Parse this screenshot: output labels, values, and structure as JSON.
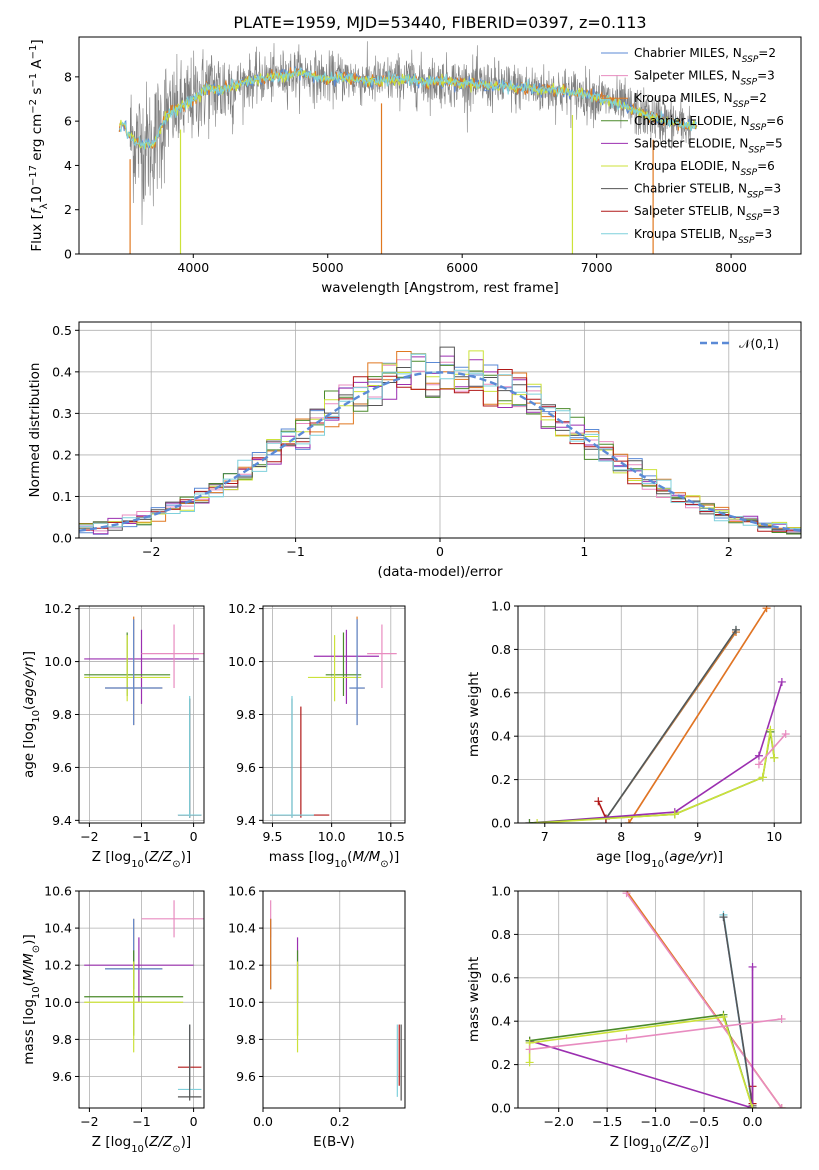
{
  "title": "PLATE=1959, MJD=53440, FIBERID=0397, z=0.113",
  "colors": {
    "Chabrier MILES": "#5b8ad6",
    "Salpeter MILES": "#e88cc0",
    "Kroupa MILES": "#e07820",
    "Chabrier ELODIE": "#4a8a2a",
    "Salpeter ELODIE": "#9b2fb0",
    "Kroupa ELODIE": "#cce23a",
    "Chabrier STELIB": "#555555",
    "Salpeter STELIB": "#b01818",
    "Kroupa STELIB": "#7fd0dc",
    "gaussian": "#5b8ad6"
  },
  "chart_data": [
    {
      "id": "spectrum",
      "type": "line",
      "xlabel": "wavelength [Angstrom, rest frame]",
      "ylabel": "Flux [f_λ 10^-17 erg cm^-2 s^-1 A^-1]",
      "xlim": [
        3150,
        8520
      ],
      "ylim": [
        0,
        9.8
      ],
      "xticks": [
        4000,
        5000,
        6000,
        7000,
        8000
      ],
      "yticks": [
        0,
        2,
        4,
        6,
        8
      ],
      "legend_position": "upper-right",
      "legend": [
        {
          "model": "Chabrier MILES",
          "n": "2"
        },
        {
          "model": "Salpeter MILES",
          "n": "3"
        },
        {
          "model": "Kroupa MILES",
          "n": "2"
        },
        {
          "model": "Chabrier ELODIE",
          "n": "6"
        },
        {
          "model": "Salpeter ELODIE",
          "n": "5"
        },
        {
          "model": "Kroupa ELODIE",
          "n": "6"
        },
        {
          "model": "Chabrier STELIB",
          "n": "3"
        },
        {
          "model": "Salpeter STELIB",
          "n": "3"
        },
        {
          "model": "Kroupa STELIB",
          "n": "3"
        }
      ],
      "model_continuum": [
        [
          3500,
          5.4
        ],
        [
          3600,
          5.0
        ],
        [
          3700,
          4.9
        ],
        [
          3800,
          6.3
        ],
        [
          3900,
          6.6
        ],
        [
          4000,
          7.0
        ],
        [
          4100,
          7.5
        ],
        [
          4200,
          7.4
        ],
        [
          4300,
          7.6
        ],
        [
          4400,
          7.8
        ],
        [
          4500,
          7.9
        ],
        [
          4600,
          8.0
        ],
        [
          4700,
          8.1
        ],
        [
          4800,
          8.2
        ],
        [
          4900,
          8.0
        ],
        [
          5000,
          7.9
        ],
        [
          5100,
          8.0
        ],
        [
          5200,
          7.9
        ],
        [
          5300,
          7.8
        ],
        [
          5400,
          7.8
        ],
        [
          5500,
          7.9
        ],
        [
          5600,
          7.9
        ],
        [
          5700,
          7.8
        ],
        [
          5800,
          7.8
        ],
        [
          5900,
          7.8
        ],
        [
          6000,
          7.7
        ],
        [
          6100,
          7.7
        ],
        [
          6200,
          7.6
        ],
        [
          6300,
          7.6
        ],
        [
          6400,
          7.5
        ],
        [
          6500,
          7.5
        ],
        [
          6600,
          7.4
        ],
        [
          6700,
          7.4
        ],
        [
          6800,
          7.3
        ],
        [
          6900,
          7.2
        ],
        [
          7000,
          7.1
        ],
        [
          7100,
          6.9
        ],
        [
          7200,
          6.7
        ],
        [
          7300,
          6.4
        ],
        [
          7400,
          6.2
        ],
        [
          7500,
          6.0
        ],
        [
          7600,
          5.9
        ],
        [
          7650,
          5.8
        ]
      ],
      "dropouts": [
        {
          "model": "Kroupa MILES",
          "x": 3530
        },
        {
          "model": "Kroupa ELODIE",
          "x": 3905
        },
        {
          "model": "Kroupa MILES",
          "x": 5400
        },
        {
          "model": "Kroupa ELODIE",
          "x": 6820
        },
        {
          "model": "Kroupa MILES",
          "x": 7420
        }
      ]
    },
    {
      "id": "residuals",
      "type": "histogram",
      "xlabel": "(data-model)/error",
      "ylabel": "Normed distribution",
      "xlim": [
        -2.5,
        2.5
      ],
      "ylim": [
        0,
        0.52
      ],
      "xticks": [
        -2,
        -1,
        0,
        1,
        2
      ],
      "yticks": [
        0.0,
        0.1,
        0.2,
        0.3,
        0.4,
        0.5
      ],
      "legend_position": "upper-right",
      "gaussian_label": "𝒩(0,1)",
      "bin_width": 0.1
    },
    {
      "id": "age-vs-Z",
      "type": "errorbar",
      "xlabel": "Z [log10(Z/Z☉)]",
      "ylabel": "age [log10(age/yr)]",
      "xlim": [
        -2.2,
        0.2
      ],
      "ylim": [
        9.39,
        10.21
      ],
      "xticks": [
        -2,
        -1,
        0
      ],
      "yticks": [
        9.4,
        9.6,
        9.8,
        10.0,
        10.2
      ],
      "points": [
        {
          "model": "Salpeter ELODIE",
          "x": [
            -2.1,
            0.1
          ],
          "y": [
            10.0,
            10.02
          ],
          "yerr": [
            9.84,
            10.12
          ]
        },
        {
          "model": "Salpeter MILES",
          "x": [
            -1.0,
            0.25
          ],
          "y": [
            10.03,
            10.03
          ],
          "yerr": [
            9.9,
            10.14
          ]
        },
        {
          "model": "Chabrier ELODIE",
          "x": [
            -2.1,
            -0.45
          ],
          "y": [
            9.95,
            9.95
          ],
          "yerr": [
            9.87,
            10.11
          ]
        },
        {
          "model": "Kroupa ELODIE",
          "x": [
            -2.1,
            -0.45
          ],
          "y": [
            9.94,
            9.94
          ],
          "yerr": [
            9.85,
            10.1
          ]
        },
        {
          "model": "Kroupa MILES",
          "x": [
            -1.7,
            -0.6
          ],
          "y": [
            9.9,
            9.9
          ],
          "yerr": [
            9.76,
            10.17
          ]
        },
        {
          "model": "Chabrier MILES",
          "x": [
            -1.7,
            -0.6
          ],
          "y": [
            9.9,
            9.9
          ],
          "yerr": [
            9.76,
            10.16
          ]
        },
        {
          "model": "Salpeter STELIB",
          "x": [
            -0.3,
            0.15
          ],
          "y": [
            9.42,
            9.42
          ],
          "yerr": [
            9.41,
            9.86
          ]
        },
        {
          "model": "Chabrier STELIB",
          "x": [
            -0.3,
            0.15
          ],
          "y": [
            9.42,
            9.42
          ],
          "yerr": [
            9.41,
            9.86
          ]
        },
        {
          "model": "Kroupa STELIB",
          "x": [
            -0.3,
            0.15
          ],
          "y": [
            9.42,
            9.42
          ],
          "yerr": [
            9.41,
            9.87
          ]
        }
      ]
    },
    {
      "id": "age-vs-mass",
      "type": "errorbar",
      "xlabel": "mass [log10(M/M☉)]",
      "ylabel": "",
      "xlim": [
        9.42,
        10.62
      ],
      "ylim": [
        9.39,
        10.21
      ],
      "xticks": [
        9.5,
        10.0,
        10.5
      ],
      "yticks": [
        9.4,
        9.6,
        9.8,
        10.0,
        10.2
      ],
      "points": [
        {
          "model": "Salpeter ELODIE",
          "x": [
            9.85,
            10.4
          ],
          "y": [
            10.02,
            10.02
          ],
          "yerr": [
            9.84,
            10.12
          ]
        },
        {
          "model": "Salpeter MILES",
          "x": [
            10.3,
            10.55
          ],
          "y": [
            10.03,
            10.03
          ],
          "yerr": [
            9.9,
            10.14
          ]
        },
        {
          "model": "Chabrier ELODIE",
          "x": [
            9.95,
            10.25
          ],
          "y": [
            9.95,
            9.95
          ],
          "yerr": [
            9.87,
            10.11
          ]
        },
        {
          "model": "Kroupa ELODIE",
          "x": [
            9.8,
            10.25
          ],
          "y": [
            9.94,
            9.94
          ],
          "yerr": [
            9.85,
            10.1
          ]
        },
        {
          "model": "Kroupa MILES",
          "x": [
            10.15,
            10.28
          ],
          "y": [
            9.9,
            9.9
          ],
          "yerr": [
            9.76,
            10.17
          ]
        },
        {
          "model": "Chabrier MILES",
          "x": [
            10.15,
            10.28
          ],
          "y": [
            9.9,
            9.9
          ],
          "yerr": [
            9.76,
            10.16
          ]
        },
        {
          "model": "Salpeter STELIB",
          "x": [
            9.5,
            9.98
          ],
          "y": [
            9.42,
            9.42
          ],
          "yerr": [
            9.41,
            9.83
          ]
        },
        {
          "model": "Chabrier STELIB",
          "x": [
            9.48,
            9.85
          ],
          "y": [
            9.42,
            9.42
          ],
          "yerr": [
            9.41,
            9.86
          ]
        },
        {
          "model": "Kroupa STELIB",
          "x": [
            9.48,
            9.85
          ],
          "y": [
            9.42,
            9.42
          ],
          "yerr": [
            9.41,
            9.87
          ]
        }
      ]
    },
    {
      "id": "weight-vs-age",
      "type": "line",
      "xlabel": "age [log10(age/yr)]",
      "ylabel": "mass weight",
      "xlim": [
        6.65,
        10.35
      ],
      "ylim": [
        0,
        1.0
      ],
      "xticks": [
        7,
        8,
        9,
        10
      ],
      "yticks": [
        0.0,
        0.2,
        0.4,
        0.6,
        0.8,
        1.0
      ],
      "series": [
        {
          "model": "Chabrier MILES",
          "x": [
            7.8,
            9.5
          ],
          "y": [
            0.02,
            0.88
          ]
        },
        {
          "model": "Kroupa MILES",
          "x": [
            7.8,
            9.5
          ],
          "y": [
            0.02,
            0.88
          ]
        },
        {
          "model": "Kroupa STELIB",
          "x": [
            7.8,
            9.5
          ],
          "y": [
            0.02,
            0.89
          ]
        },
        {
          "model": "Chabrier STELIB",
          "x": [
            7.8,
            9.5
          ],
          "y": [
            0.02,
            0.89
          ]
        },
        {
          "model": "Salpeter MILES",
          "x": [
            8.1,
            9.9
          ],
          "y": [
            0.0,
            0.99
          ]
        },
        {
          "model": "Kroupa MILES",
          "x": [
            8.1,
            9.9
          ],
          "y": [
            0.0,
            0.99
          ]
        },
        {
          "model": "Salpeter STELIB",
          "x": [
            7.7,
            7.8
          ],
          "y": [
            0.1,
            0.02
          ]
        },
        {
          "model": "Salpeter ELODIE",
          "x": [
            6.8,
            8.7,
            9.8,
            10.1
          ],
          "y": [
            0.0,
            0.05,
            0.31,
            0.65
          ]
        },
        {
          "model": "Chabrier ELODIE",
          "x": [
            6.8,
            8.7,
            9.85,
            9.95,
            10.0
          ],
          "y": [
            0.0,
            0.04,
            0.21,
            0.42,
            0.3
          ]
        },
        {
          "model": "Kroupa ELODIE",
          "x": [
            6.9,
            8.7,
            9.85,
            9.95,
            10.0
          ],
          "y": [
            0.0,
            0.04,
            0.21,
            0.43,
            0.3
          ]
        },
        {
          "model": "Salpeter MILES",
          "x": [
            9.8,
            10.15
          ],
          "y": [
            0.27,
            0.41
          ]
        }
      ]
    },
    {
      "id": "mass-vs-Z",
      "type": "errorbar",
      "xlabel": "Z [log10(Z/Z☉)]",
      "ylabel": "mass [log10(M/M☉)]",
      "xlim": [
        -2.2,
        0.2
      ],
      "ylim": [
        9.43,
        10.6
      ],
      "xticks": [
        -2,
        -1,
        0
      ],
      "yticks": [
        9.6,
        9.8,
        10.0,
        10.2,
        10.4,
        10.6
      ],
      "points": [
        {
          "model": "Salpeter MILES",
          "x": [
            -1.0,
            0.25
          ],
          "y": [
            10.45,
            10.45
          ],
          "yerr": [
            10.35,
            10.55
          ]
        },
        {
          "model": "Salpeter ELODIE",
          "x": [
            -2.1,
            0.0
          ],
          "y": [
            10.2,
            10.2
          ],
          "yerr": [
            10.0,
            10.35
          ]
        },
        {
          "model": "Kroupa MILES",
          "x": [
            -1.7,
            -0.6
          ],
          "y": [
            10.18,
            10.18
          ],
          "yerr": [
            10.07,
            10.45
          ]
        },
        {
          "model": "Chabrier MILES",
          "x": [
            -1.7,
            -0.6
          ],
          "y": [
            10.18,
            10.18
          ],
          "yerr": [
            10.07,
            10.45
          ]
        },
        {
          "model": "Chabrier ELODIE",
          "x": [
            -2.1,
            -0.2
          ],
          "y": [
            10.03,
            10.03
          ],
          "yerr": [
            9.82,
            10.28
          ]
        },
        {
          "model": "Kroupa ELODIE",
          "x": [
            -2.1,
            -0.2
          ],
          "y": [
            10.0,
            10.0
          ],
          "yerr": [
            9.73,
            10.22
          ]
        },
        {
          "model": "Salpeter STELIB",
          "x": [
            -0.3,
            0.15
          ],
          "y": [
            9.65,
            9.65
          ],
          "yerr": [
            9.55,
            9.88
          ]
        },
        {
          "model": "Kroupa STELIB",
          "x": [
            -0.3,
            0.15
          ],
          "y": [
            9.53,
            9.53
          ],
          "yerr": [
            9.49,
            9.88
          ]
        },
        {
          "model": "Chabrier STELIB",
          "x": [
            -0.3,
            0.15
          ],
          "y": [
            9.49,
            9.49
          ],
          "yerr": [
            9.47,
            9.88
          ]
        }
      ]
    },
    {
      "id": "mass-vs-ebv",
      "type": "errorbar",
      "xlabel": "E(B-V)",
      "ylabel": "",
      "xlim": [
        0.0,
        0.37
      ],
      "ylim": [
        9.43,
        10.6
      ],
      "xticks": [
        0.0,
        0.2
      ],
      "yticks": [
        9.6,
        9.8,
        10.0,
        10.2,
        10.4,
        10.6
      ],
      "points": [
        {
          "model": "Salpeter MILES",
          "x": 0.02,
          "yerr": [
            10.35,
            10.55
          ]
        },
        {
          "model": "Chabrier MILES",
          "x": 0.02,
          "yerr": [
            10.07,
            10.45
          ]
        },
        {
          "model": "Kroupa MILES",
          "x": 0.02,
          "yerr": [
            10.07,
            10.45
          ]
        },
        {
          "model": "Salpeter ELODIE",
          "x": 0.09,
          "yerr": [
            10.0,
            10.35
          ]
        },
        {
          "model": "Chabrier ELODIE",
          "x": 0.09,
          "yerr": [
            9.82,
            10.28
          ]
        },
        {
          "model": "Kroupa ELODIE",
          "x": 0.09,
          "yerr": [
            9.73,
            10.22
          ]
        },
        {
          "model": "Salpeter STELIB",
          "x": 0.355,
          "yerr": [
            9.55,
            9.88
          ]
        },
        {
          "model": "Kroupa STELIB",
          "x": 0.35,
          "yerr": [
            9.49,
            9.88
          ]
        },
        {
          "model": "Chabrier STELIB",
          "x": 0.36,
          "yerr": [
            9.47,
            9.88
          ]
        }
      ]
    },
    {
      "id": "weight-vs-Z",
      "type": "line",
      "xlabel": "Z [log10(Z/Z☉)]",
      "ylabel": "mass weight",
      "xlim": [
        -2.42,
        0.5
      ],
      "ylim": [
        0,
        1.0
      ],
      "xticks": [
        -2.0,
        -1.5,
        -1.0,
        -0.5,
        0.0
      ],
      "yticks": [
        0.0,
        0.2,
        0.4,
        0.6,
        0.8,
        1.0
      ],
      "series": [
        {
          "model": "Kroupa MILES",
          "x": [
            -1.3,
            0.3
          ],
          "y": [
            1.0,
            0.0
          ]
        },
        {
          "model": "Salpeter MILES",
          "x": [
            -1.3,
            0.3
          ],
          "y": [
            0.99,
            0.0
          ]
        },
        {
          "model": "Chabrier MILES",
          "x": [
            -0.3,
            0.0
          ],
          "y": [
            0.88,
            0.0
          ]
        },
        {
          "model": "Kroupa STELIB",
          "x": [
            -0.3,
            0.0
          ],
          "y": [
            0.89,
            0.0
          ]
        },
        {
          "model": "Chabrier STELIB",
          "x": [
            -0.3,
            0.0
          ],
          "y": [
            0.88,
            0.01
          ]
        },
        {
          "model": "Salpeter STELIB",
          "x": [
            0.0,
            0.0
          ],
          "y": [
            0.1,
            0.02
          ]
        },
        {
          "model": "Salpeter ELODIE",
          "x": [
            0.0,
            0.0,
            -2.3,
            0.0
          ],
          "y": [
            0.65,
            0.0,
            0.31,
            0.0
          ]
        },
        {
          "model": "Chabrier ELODIE",
          "x": [
            -2.3,
            -0.3,
            0.0
          ],
          "y": [
            0.31,
            0.43,
            0.0
          ]
        },
        {
          "model": "Kroupa ELODIE",
          "x": [
            -2.3,
            -2.3,
            -0.3,
            0.0
          ],
          "y": [
            0.21,
            0.3,
            0.42,
            0.0
          ]
        },
        {
          "model": "Salpeter MILES",
          "x": [
            -2.3,
            -1.3,
            0.3
          ],
          "y": [
            0.27,
            0.32,
            0.41
          ]
        }
      ]
    }
  ]
}
